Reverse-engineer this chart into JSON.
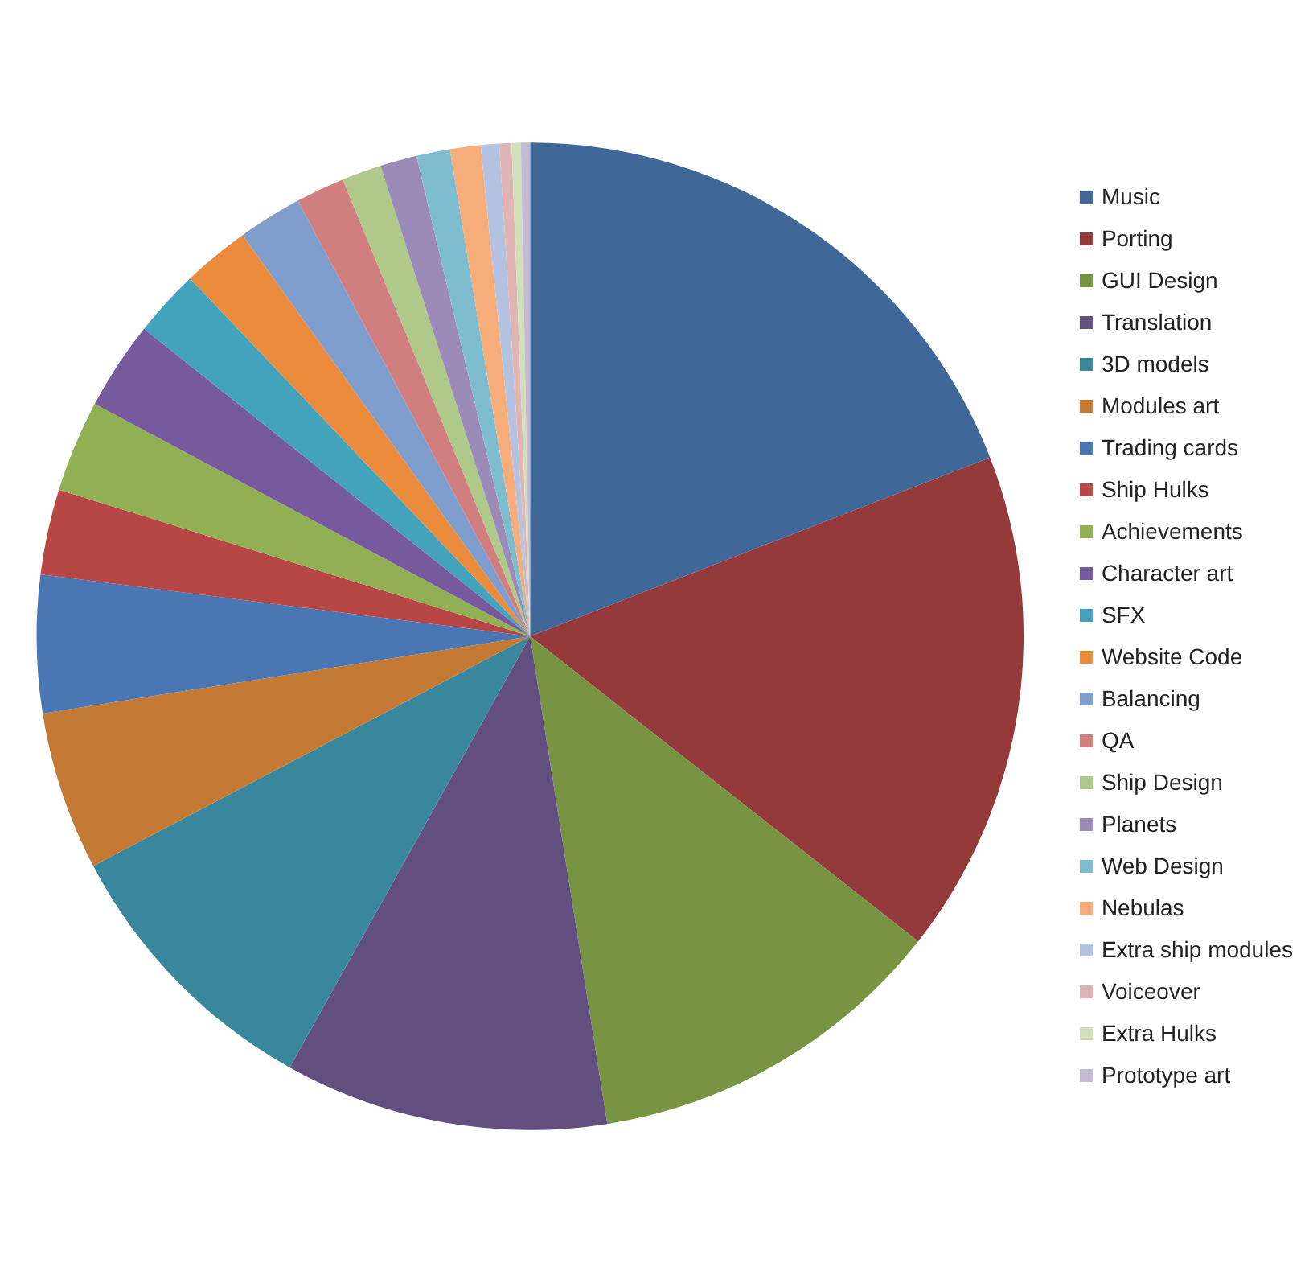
{
  "chart_data": {
    "type": "pie",
    "categories": [
      "Music",
      "Porting",
      "GUI Design",
      "Translation",
      "3D models",
      "Modules art",
      "Trading cards",
      "Ship Hulks",
      "Achievements",
      "Character art",
      "SFX",
      "Website Code",
      "Balancing",
      "QA",
      "Ship Design",
      "Planets",
      "Web Design",
      "Nebulas",
      "Extra ship modules",
      "Voiceover",
      "Extra Hulks",
      "Prototype art"
    ],
    "values": [
      19.1,
      16.5,
      11.9,
      10.6,
      9.2,
      5.2,
      4.5,
      2.8,
      3.0,
      2.9,
      2.2,
      2.2,
      2.1,
      1.6,
      1.3,
      1.2,
      1.1,
      1.0,
      0.6,
      0.4,
      0.3,
      0.3
    ],
    "colors": [
      "#3f6797",
      "#953a3a",
      "#779443",
      "#634e80",
      "#38879c",
      "#c47a35",
      "#4a77b4",
      "#b64744",
      "#91b054",
      "#775a9e",
      "#43a3bd",
      "#ea8c3c",
      "#7f9dcd",
      "#d07f7e",
      "#aec98a",
      "#9c8bb8",
      "#7ebccf",
      "#f7ad79",
      "#b3c3e1",
      "#e0b5b4",
      "#d1e0bb",
      "#c3bbd5"
    ],
    "legend": "right"
  }
}
